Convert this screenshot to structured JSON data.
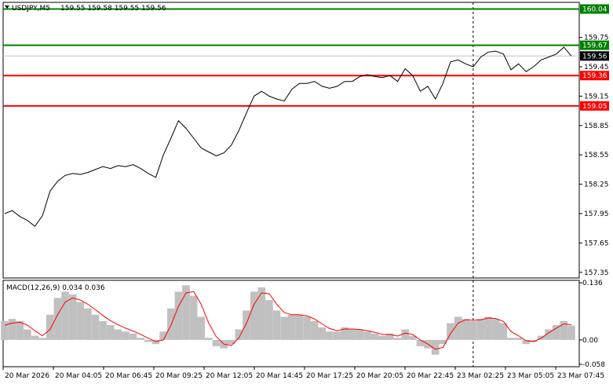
{
  "header": {
    "symbol": "USDJPY,M5",
    "ohlc": "159.55 159.58 159.55 159.56"
  },
  "macd": {
    "label": "MACD(12,26,9) 0.034 0.036",
    "ticks": [
      "0.136",
      "0.00",
      "-0.058"
    ],
    "tick_values": [
      0.136,
      0.0,
      -0.058
    ]
  },
  "colors": {
    "background": "#ffffff",
    "price_line": "#000000",
    "resistance_green": "#008000",
    "support_red": "#ff0000",
    "macd_histogram": "#c0c0c0",
    "signal_line": "#ff0000",
    "current_price_tag": "#000000"
  },
  "chart_data": [
    {
      "type": "line",
      "title": "USDJPY,M5",
      "ylim": [
        157.3,
        160.1
      ],
      "y_ticks": [
        157.35,
        157.65,
        157.95,
        158.25,
        158.55,
        158.85,
        159.15,
        159.45,
        159.75
      ],
      "y_tick_labels": [
        "157.35",
        "157.65",
        "157.95",
        "158.25",
        "158.55",
        "158.85",
        "159.15",
        "159.45",
        "159.75"
      ],
      "x_labels": [
        "20 Mar 2026",
        "20 Mar 04:05",
        "20 Mar 06:45",
        "20 Mar 09:25",
        "20 Mar 12:05",
        "20 Mar 14:45",
        "20 Mar 17:25",
        "20 Mar 20:05",
        "20 Mar 22:45",
        "23 Mar 02:25",
        "23 Mar 05:05",
        "23 Mar 07:45"
      ],
      "levels": [
        {
          "value": 160.04,
          "label": "160.04",
          "color": "#008000"
        },
        {
          "value": 159.67,
          "label": "159.67",
          "color": "#008000"
        },
        {
          "value": 159.36,
          "label": "159.36",
          "color": "#ff0000"
        },
        {
          "value": 159.05,
          "label": "159.05",
          "color": "#ff0000"
        }
      ],
      "current_price": {
        "value": 159.56,
        "label": "159.56"
      },
      "cursor_x_index": 62,
      "series": [
        {
          "values": [
            157.95,
            157.98,
            157.92,
            157.88,
            157.82,
            157.93,
            158.18,
            158.28,
            158.34,
            158.36,
            158.35,
            158.37,
            158.4,
            158.43,
            158.41,
            158.44,
            158.43,
            158.45,
            158.41,
            158.36,
            158.32,
            158.55,
            158.72,
            158.9,
            158.82,
            158.72,
            158.62,
            158.58,
            158.54,
            158.57,
            158.65,
            158.8,
            158.98,
            159.15,
            159.2,
            159.15,
            159.12,
            159.1,
            159.22,
            159.28,
            159.28,
            159.3,
            159.25,
            159.23,
            159.25,
            159.3,
            159.3,
            159.35,
            159.37,
            159.35,
            159.34,
            159.36,
            159.3,
            159.43,
            159.36,
            159.2,
            159.25,
            159.12,
            159.28,
            159.5,
            159.52,
            159.48,
            159.45,
            159.55,
            159.6,
            159.61,
            159.58,
            159.42,
            159.48,
            159.4,
            159.45,
            159.52,
            159.55,
            159.58,
            159.65,
            159.56
          ]
        }
      ]
    },
    {
      "type": "bar",
      "title": "MACD(12,26,9) 0.034 0.036",
      "ylim": [
        -0.062,
        0.14
      ],
      "histogram": [
        0.045,
        0.05,
        0.045,
        0.025,
        0.01,
        0.005,
        0.06,
        0.1,
        0.115,
        0.108,
        0.09,
        0.075,
        0.06,
        0.045,
        0.035,
        0.025,
        0.02,
        0.015,
        0.005,
        -0.005,
        -0.01,
        0.02,
        0.075,
        0.115,
        0.13,
        0.105,
        0.055,
        0.005,
        -0.015,
        -0.02,
        -0.01,
        0.025,
        0.07,
        0.115,
        0.125,
        0.095,
        0.07,
        0.055,
        0.06,
        0.06,
        0.055,
        0.045,
        0.03,
        0.02,
        0.02,
        0.03,
        0.025,
        0.025,
        0.02,
        0.015,
        0.01,
        0.015,
        0.005,
        0.025,
        0.01,
        -0.015,
        -0.02,
        -0.035,
        -0.01,
        0.04,
        0.055,
        0.05,
        0.045,
        0.05,
        0.055,
        0.05,
        0.04,
        0.005,
        0.005,
        -0.01,
        -0.005,
        0.01,
        0.025,
        0.035,
        0.045,
        0.034
      ],
      "signal": [
        0.035,
        0.04,
        0.042,
        0.035,
        0.022,
        0.01,
        0.025,
        0.06,
        0.09,
        0.1,
        0.095,
        0.085,
        0.072,
        0.058,
        0.046,
        0.036,
        0.028,
        0.021,
        0.013,
        0.004,
        -0.004,
        0.0,
        0.035,
        0.08,
        0.112,
        0.115,
        0.085,
        0.04,
        0.008,
        -0.01,
        -0.013,
        0.005,
        0.04,
        0.085,
        0.112,
        0.11,
        0.085,
        0.065,
        0.06,
        0.06,
        0.057,
        0.05,
        0.038,
        0.027,
        0.022,
        0.026,
        0.026,
        0.025,
        0.022,
        0.018,
        0.013,
        0.013,
        0.009,
        0.016,
        0.013,
        0.0,
        -0.01,
        -0.022,
        -0.018,
        0.015,
        0.04,
        0.048,
        0.047,
        0.048,
        0.052,
        0.051,
        0.044,
        0.02,
        0.01,
        -0.002,
        -0.004,
        0.004,
        0.017,
        0.028,
        0.038,
        0.036
      ]
    }
  ]
}
